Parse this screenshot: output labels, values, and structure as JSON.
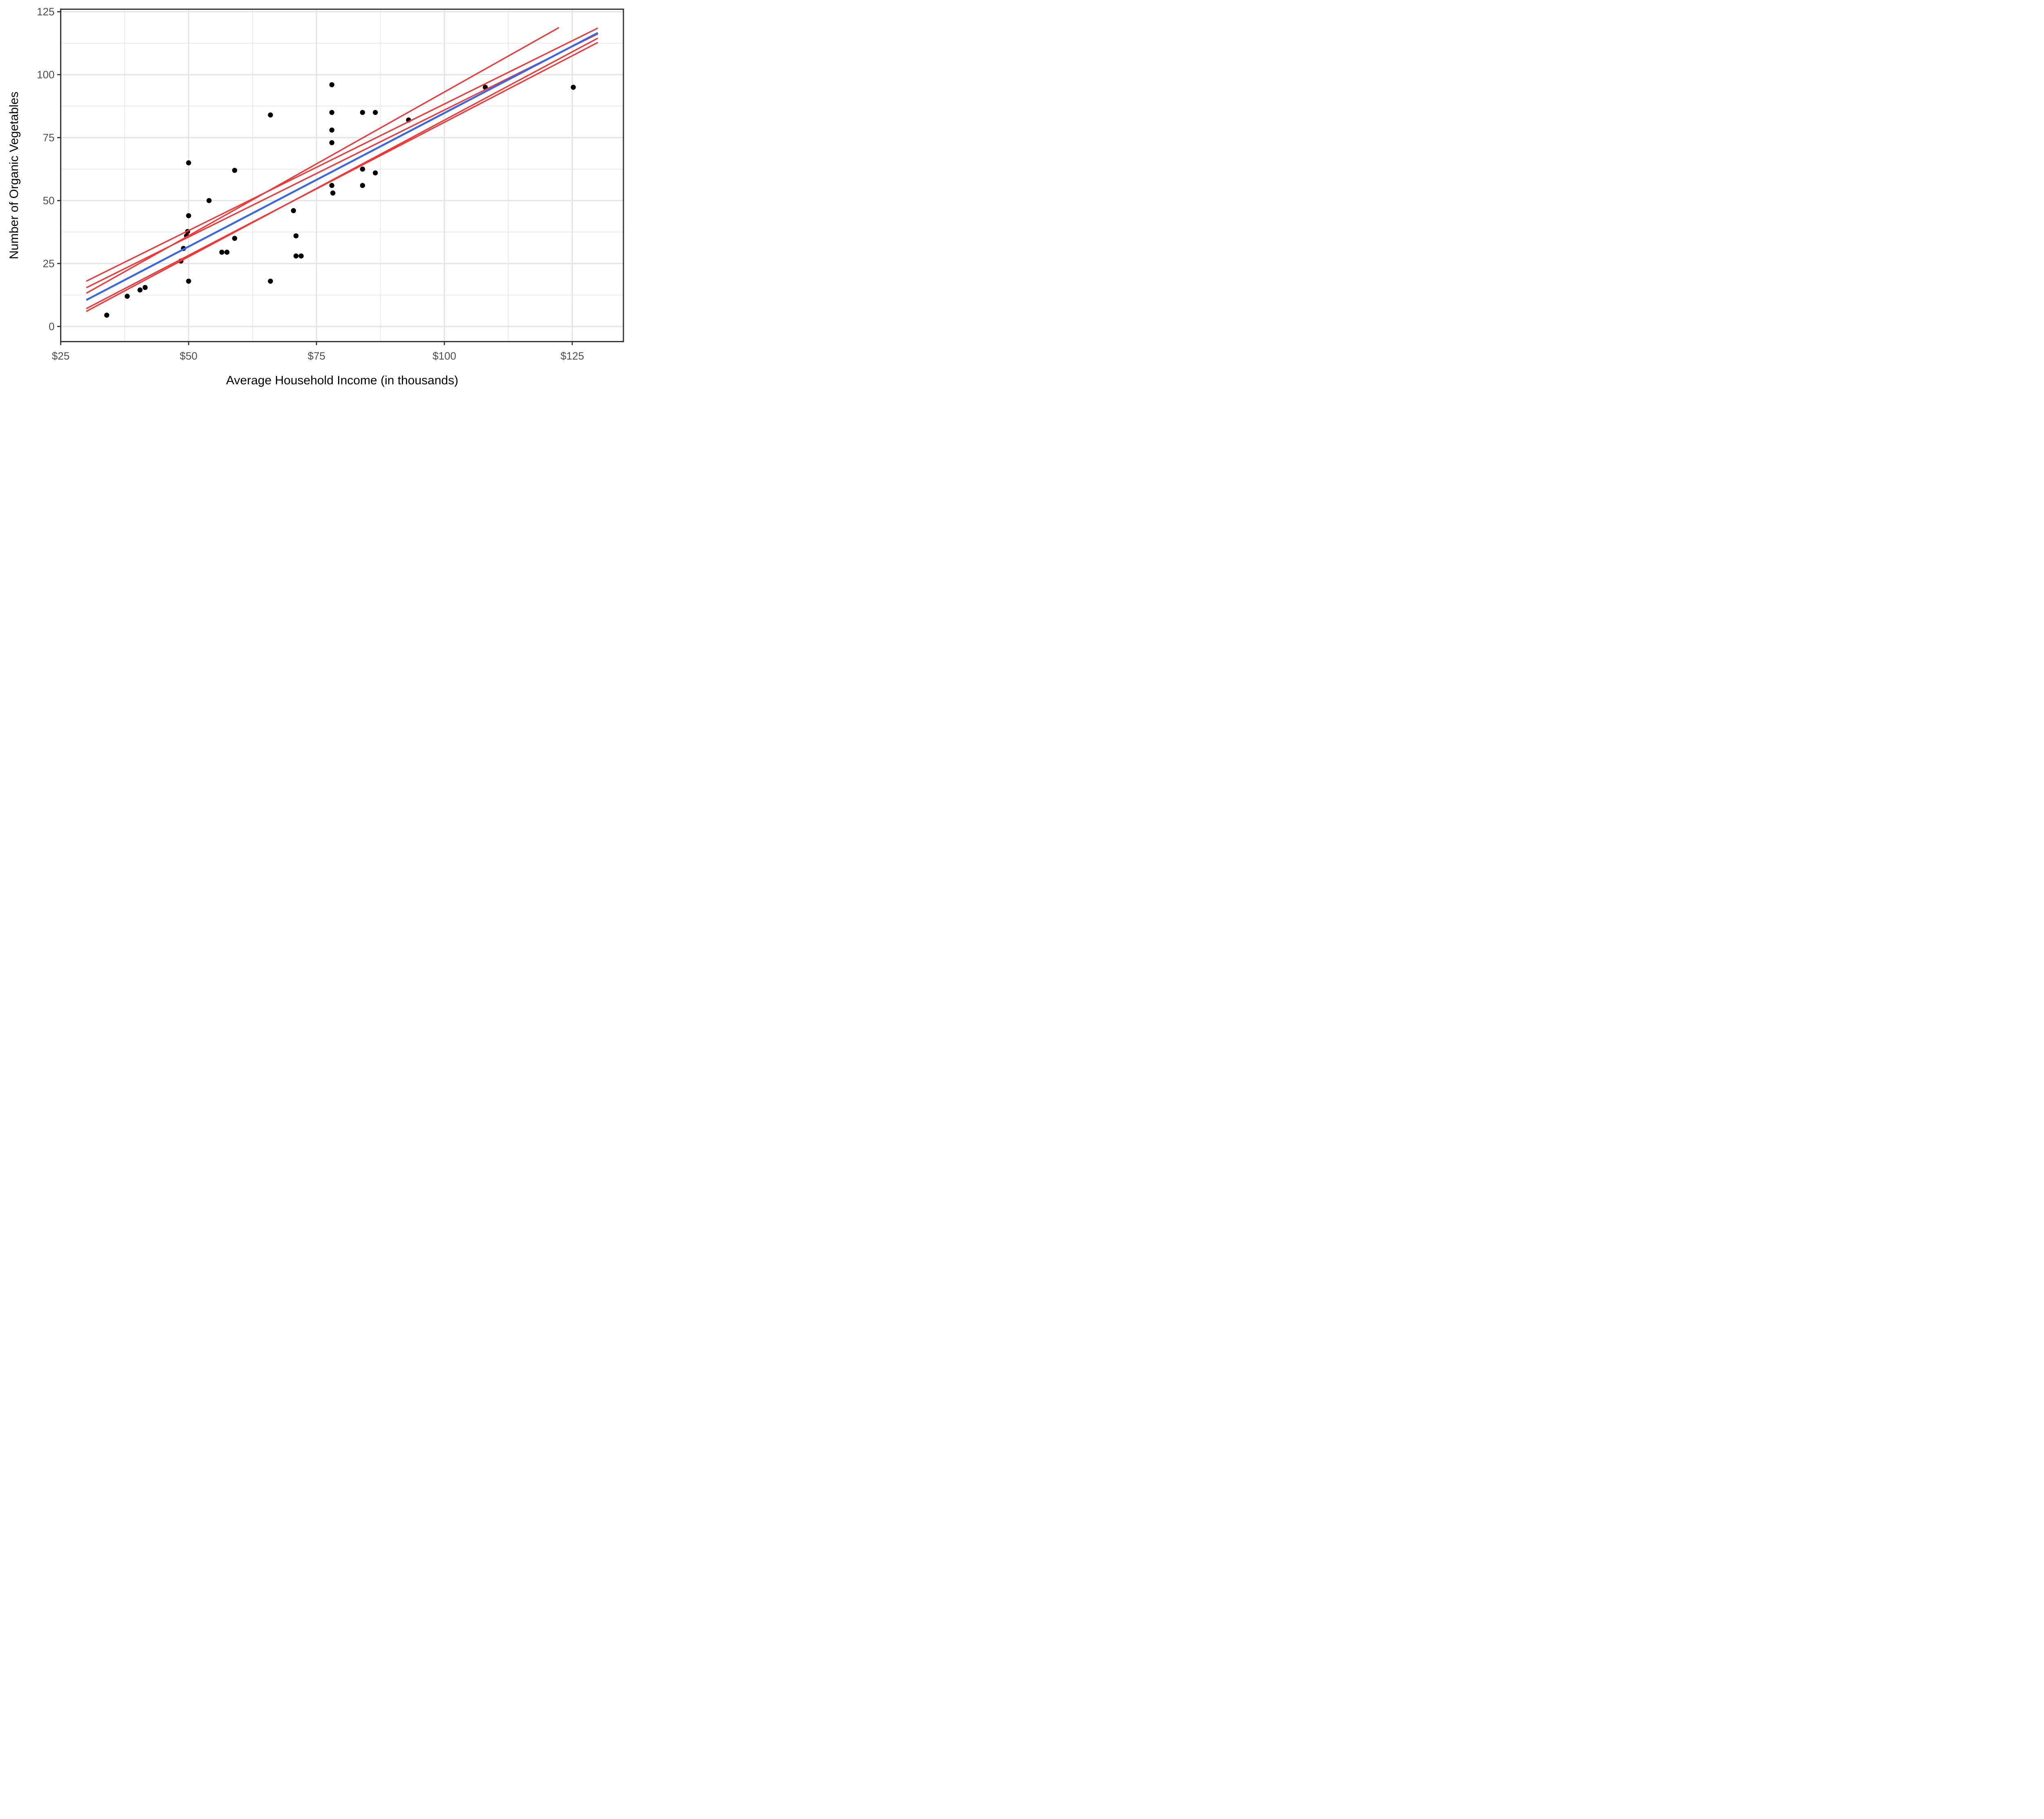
{
  "chart_data": {
    "type": "scatter",
    "title": "",
    "xlabel": "Average Household Income (in thousands)",
    "ylabel": "Number of Organic Vegetables",
    "xlim": [
      25,
      135
    ],
    "ylim": [
      -6,
      126
    ],
    "x_ticks": [
      25,
      50,
      75,
      100,
      125
    ],
    "x_tick_labels": [
      "$25",
      "$50",
      "$75",
      "$100",
      "$125"
    ],
    "y_ticks": [
      0,
      25,
      50,
      75,
      100,
      125
    ],
    "y_tick_labels": [
      "0",
      "25",
      "50",
      "75",
      "100",
      "125"
    ],
    "x_minor_gridlines": [
      37.5,
      62.5,
      87.5,
      112.5
    ],
    "y_minor_gridlines": [
      12.5,
      37.5,
      62.5,
      87.5,
      112.5
    ],
    "grid": "on",
    "legend": "none",
    "points": [
      [
        34,
        4.5
      ],
      [
        38,
        12
      ],
      [
        40.5,
        14.5
      ],
      [
        41.5,
        15.5
      ],
      [
        48.5,
        26
      ],
      [
        49,
        31
      ],
      [
        50,
        18
      ],
      [
        49.6,
        36
      ],
      [
        49.8,
        37.7
      ],
      [
        50,
        44
      ],
      [
        50,
        65
      ],
      [
        54,
        50
      ],
      [
        56.5,
        29.5
      ],
      [
        57.5,
        29.5
      ],
      [
        59,
        35
      ],
      [
        59,
        62
      ],
      [
        66,
        84
      ],
      [
        66,
        18
      ],
      [
        70.5,
        46
      ],
      [
        71,
        36
      ],
      [
        71,
        28
      ],
      [
        72,
        28
      ],
      [
        78,
        96
      ],
      [
        78,
        85
      ],
      [
        78,
        78
      ],
      [
        78,
        73
      ],
      [
        78,
        56
      ],
      [
        78.2,
        53
      ],
      [
        84,
        85
      ],
      [
        86.5,
        85
      ],
      [
        84,
        62.5
      ],
      [
        86.5,
        61
      ],
      [
        84,
        56
      ],
      [
        93,
        82
      ],
      [
        108,
        95
      ],
      [
        125.2,
        95
      ]
    ],
    "fitted_line_blue": [
      [
        30,
        10.5
      ],
      [
        130,
        116.6
      ]
    ],
    "bootstrap_lines_red": [
      [
        [
          30,
          18.0
        ],
        [
          130,
          118.5
        ]
      ],
      [
        [
          30,
          15.4
        ],
        [
          130,
          116.2
        ]
      ],
      [
        [
          30,
          13.2
        ],
        [
          122.4,
          118.7
        ]
      ],
      [
        [
          30,
          6.0
        ],
        [
          130,
          114.5
        ]
      ],
      [
        [
          30,
          7.1
        ],
        [
          130,
          112.8
        ]
      ]
    ],
    "colors": {
      "background": "#ffffff",
      "panel_background": "#ffffff",
      "gridline": "#e6e6e6",
      "panel_border": "#333333",
      "tick_mark": "#333333",
      "tick_text": "#4d4d4d",
      "axis_title_text": "#000000",
      "point": "#000000",
      "fitted_line": "#3566EC",
      "bootstrap_line": "#FA3332"
    }
  }
}
